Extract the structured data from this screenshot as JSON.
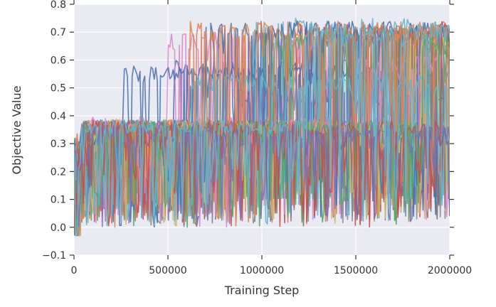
{
  "chart_data": {
    "type": "line",
    "title": "",
    "xlabel": "Training Step",
    "ylabel": "Objective Value",
    "xlim": [
      0,
      2000000
    ],
    "ylim": [
      -0.1,
      0.8
    ],
    "x_ticks": [
      0,
      500000,
      1000000,
      1500000,
      2000000
    ],
    "x_tick_labels": [
      "0",
      "500000",
      "1000000",
      "1500000",
      "2000000"
    ],
    "y_ticks": [
      -0.1,
      0.0,
      0.1,
      0.2,
      0.3,
      0.4,
      0.5,
      0.6,
      0.7,
      0.8
    ],
    "y_tick_labels": [
      "−0.1",
      "0.0",
      "0.1",
      "0.2",
      "0.3",
      "0.4",
      "0.5",
      "0.6",
      "0.7",
      "0.8"
    ],
    "grid": true,
    "background": "#eaeaf2",
    "grid_color": "#ffffff",
    "legend": "none",
    "series_count": 36,
    "samples_per_series": 240,
    "series": [
      {
        "color": "#4c72b0",
        "plateau": 0.6,
        "jump_step": 530000,
        "noise": 0.12
      },
      {
        "color": "#dd8452",
        "plateau": 0.72,
        "jump_step": 760000,
        "noise": 0.14
      },
      {
        "color": "#55a868",
        "plateau": 0.38,
        "jump_step": 90000,
        "noise": 0.15
      },
      {
        "color": "#c44e52",
        "plateau": 0.73,
        "jump_step": 1150000,
        "noise": 0.13
      },
      {
        "color": "#8172b3",
        "plateau": 0.38,
        "jump_step": 60000,
        "noise": 0.14
      },
      {
        "color": "#937860",
        "plateau": 0.37,
        "jump_step": 120000,
        "noise": 0.15
      },
      {
        "color": "#da8bc3",
        "plateau": 0.7,
        "jump_step": 500000,
        "noise": 0.14
      },
      {
        "color": "#8c8c8c",
        "plateau": 0.38,
        "jump_step": 80000,
        "noise": 0.13
      },
      {
        "color": "#ccb974",
        "plateau": 0.39,
        "jump_step": 110000,
        "noise": 0.16
      },
      {
        "color": "#64b5cd",
        "plateau": 0.75,
        "jump_step": 950000,
        "noise": 0.14
      },
      {
        "color": "#4c72b0",
        "plateau": 0.58,
        "jump_step": 260000,
        "noise": 0.12
      },
      {
        "color": "#dd8452",
        "plateau": 0.37,
        "jump_step": 70000,
        "noise": 0.15
      },
      {
        "color": "#55a868",
        "plateau": 0.71,
        "jump_step": 1000000,
        "noise": 0.13
      },
      {
        "color": "#c44e52",
        "plateau": 0.35,
        "jump_step": 100000,
        "noise": 0.14
      },
      {
        "color": "#8172b3",
        "plateau": 0.72,
        "jump_step": 1400000,
        "noise": 0.13
      },
      {
        "color": "#937860",
        "plateau": 0.38,
        "jump_step": 90000,
        "noise": 0.16
      },
      {
        "color": "#da8bc3",
        "plateau": 0.4,
        "jump_step": 80000,
        "noise": 0.15
      },
      {
        "color": "#8c8c8c",
        "plateau": 0.73,
        "jump_step": 1600000,
        "noise": 0.12
      },
      {
        "color": "#ccb974",
        "plateau": 0.38,
        "jump_step": 130000,
        "noise": 0.15
      },
      {
        "color": "#64b5cd",
        "plateau": 0.38,
        "jump_step": 100000,
        "noise": 0.16
      },
      {
        "color": "#4c72b0",
        "plateau": 0.74,
        "jump_step": 700000,
        "noise": 0.13
      },
      {
        "color": "#dd8452",
        "plateau": 0.73,
        "jump_step": 1700000,
        "noise": 0.12
      },
      {
        "color": "#55a868",
        "plateau": 0.37,
        "jump_step": 60000,
        "noise": 0.14
      },
      {
        "color": "#c44e52",
        "plateau": 0.38,
        "jump_step": 90000,
        "noise": 0.14
      },
      {
        "color": "#8172b3",
        "plateau": 0.5,
        "jump_step": 870000,
        "noise": 0.13
      },
      {
        "color": "#937860",
        "plateau": 0.72,
        "jump_step": 1300000,
        "noise": 0.13
      },
      {
        "color": "#da8bc3",
        "plateau": 0.62,
        "jump_step": 1500000,
        "noise": 0.14
      },
      {
        "color": "#8c8c8c",
        "plateau": 0.37,
        "jump_step": 110000,
        "noise": 0.15
      },
      {
        "color": "#ccb974",
        "plateau": 0.7,
        "jump_step": 1750000,
        "noise": 0.13
      },
      {
        "color": "#64b5cd",
        "plateau": 0.55,
        "jump_step": 620000,
        "noise": 0.13
      },
      {
        "color": "#4c72b0",
        "plateau": 0.36,
        "jump_step": 70000,
        "noise": 0.15
      },
      {
        "color": "#dd8452",
        "plateau": 0.74,
        "jump_step": 600000,
        "noise": 0.14
      },
      {
        "color": "#55a868",
        "plateau": 0.69,
        "jump_step": 1850000,
        "noise": 0.12
      },
      {
        "color": "#c44e52",
        "plateau": 0.74,
        "jump_step": 1950000,
        "noise": 0.1
      },
      {
        "color": "#8172b3",
        "plateau": 0.37,
        "jump_step": 80000,
        "noise": 0.15
      },
      {
        "color": "#64b5cd",
        "plateau": 0.73,
        "jump_step": 1200000,
        "noise": 0.14
      }
    ]
  }
}
